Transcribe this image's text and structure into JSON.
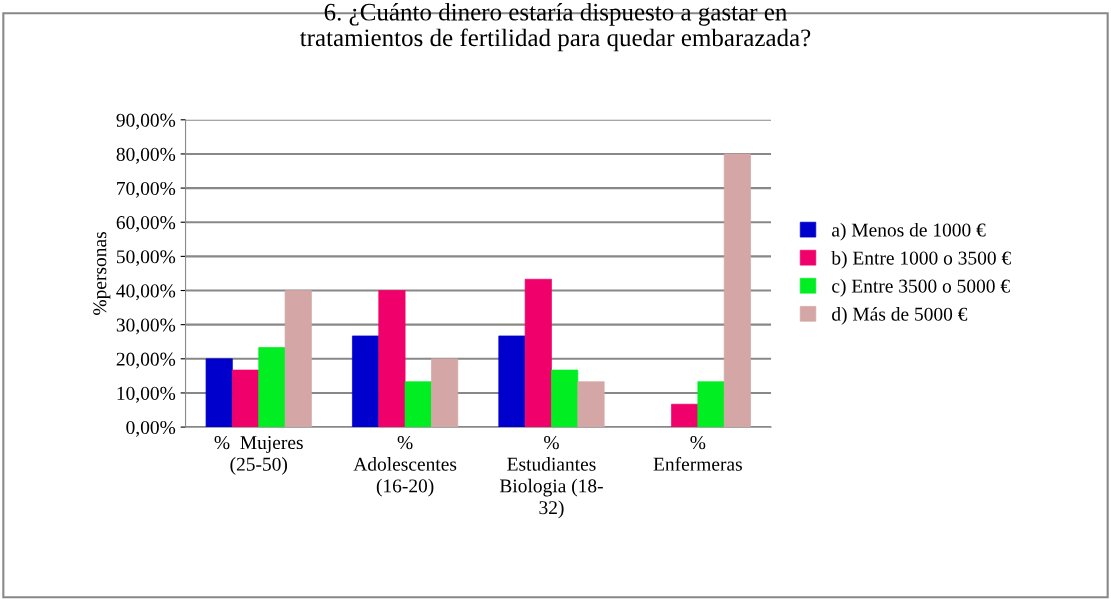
{
  "chart_data": {
    "type": "bar",
    "title": "6. ¿Cuánto dinero estaría dispuesto a gastar en\ntratamientos de fertilidad para quedar embarazada?",
    "ylabel": "%personas",
    "categories": [
      "%  Mujeres\n(25-50)",
      "%\nAdolescentes\n(16-20)",
      "%\nEstudiantes\nBiologia (18-\n32)",
      "%\nEnfermeras"
    ],
    "series": [
      {
        "name": "a) Menos de 1000 €",
        "color": "#0000cc",
        "values": [
          20,
          26.7,
          26.7,
          null
        ]
      },
      {
        "name": "b) Entre 1000 o 3500 €",
        "color": "#f0006a",
        "values": [
          16.7,
          40,
          43.3,
          6.7
        ]
      },
      {
        "name": "c) Entre 3500 o 5000 €",
        "color": "#00ee22",
        "values": [
          23.3,
          13.3,
          16.7,
          13.3
        ]
      },
      {
        "name": "d) Más de 5000 €",
        "color": "#d4a6a6",
        "values": [
          40,
          20,
          13.3,
          80
        ]
      }
    ],
    "ylim": [
      0,
      90
    ],
    "yticks": [
      {
        "value": 0,
        "label": "0,00%"
      },
      {
        "value": 10,
        "label": "10,00%"
      },
      {
        "value": 20,
        "label": "20,00%"
      },
      {
        "value": 30,
        "label": "30,00%"
      },
      {
        "value": 40,
        "label": "40,00%"
      },
      {
        "value": 50,
        "label": "50,00%"
      },
      {
        "value": 60,
        "label": "60,00%"
      },
      {
        "value": 70,
        "label": "70,00%"
      },
      {
        "value": 80,
        "label": "80,00%"
      },
      {
        "value": 90,
        "label": "90,00%"
      }
    ],
    "grid": "y",
    "legend": "right"
  }
}
